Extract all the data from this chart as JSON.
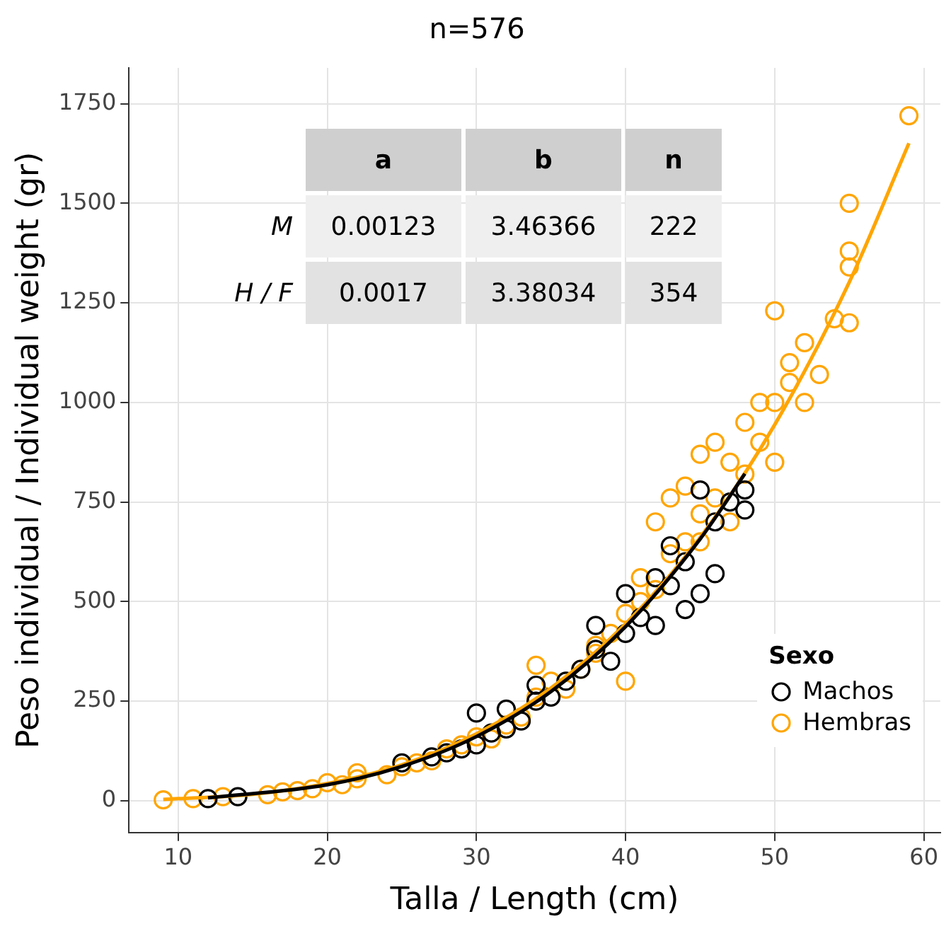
{
  "chart_data": {
    "type": "scatter",
    "title": "n=576",
    "xlabel": "Talla / Length (cm)",
    "ylabel": "Peso individual / Individual weight (gr)",
    "legend_title": "Sexo",
    "xlim": [
      6.7,
      61.1
    ],
    "xticks": [
      10,
      20,
      30,
      40,
      50,
      60
    ],
    "ylim": [
      -80,
      1840
    ],
    "yticks": [
      0,
      250,
      500,
      750,
      1000,
      1250,
      1500,
      1750
    ],
    "grid": true,
    "legend": "bottom right",
    "marker": "circle",
    "annotations": [
      "a",
      "b",
      "n",
      "M",
      "0.00123",
      "3.46366",
      "222",
      "H / F",
      "0.0017",
      "3.38034",
      "354"
    ],
    "series": [
      {
        "name": "Machos",
        "type": "scatter",
        "color": "#000000",
        "x": [
          12,
          14,
          25,
          27,
          28,
          29,
          30,
          30,
          31,
          32,
          32,
          33,
          34,
          34,
          35,
          36,
          37,
          38,
          38,
          39,
          40,
          40,
          41,
          42,
          42,
          43,
          43,
          44,
          44,
          45,
          45,
          46,
          46,
          47,
          48,
          48
        ],
        "values": [
          5,
          10,
          95,
          110,
          120,
          130,
          140,
          220,
          170,
          180,
          230,
          200,
          250,
          290,
          260,
          300,
          330,
          380,
          440,
          350,
          420,
          520,
          460,
          440,
          560,
          540,
          640,
          480,
          600,
          520,
          780,
          570,
          700,
          750,
          780,
          730
        ]
      },
      {
        "name": "Hembras",
        "type": "scatter",
        "color": "#ffa500",
        "x": [
          9,
          11,
          13,
          16,
          17,
          18,
          19,
          20,
          21,
          22,
          22,
          24,
          25,
          26,
          27,
          28,
          29,
          30,
          31,
          32,
          33,
          34,
          34,
          35,
          36,
          37,
          38,
          38,
          39,
          40,
          40,
          41,
          41,
          42,
          42,
          43,
          43,
          44,
          44,
          45,
          45,
          46,
          46,
          47,
          48,
          48,
          49,
          49,
          50,
          50,
          50,
          51,
          51,
          52,
          52,
          53,
          54,
          55,
          55,
          55,
          55,
          59,
          47,
          45
        ],
        "values": [
          2,
          5,
          10,
          15,
          22,
          25,
          30,
          45,
          40,
          70,
          55,
          65,
          85,
          95,
          100,
          130,
          140,
          160,
          155,
          190,
          210,
          260,
          340,
          300,
          280,
          330,
          390,
          370,
          420,
          300,
          470,
          500,
          560,
          530,
          700,
          620,
          760,
          650,
          790,
          720,
          870,
          760,
          900,
          850,
          820,
          950,
          900,
          1000,
          850,
          1000,
          1230,
          1100,
          1050,
          1150,
          1000,
          1070,
          1210,
          1200,
          1380,
          1340,
          1500,
          1720,
          700,
          650
        ]
      },
      {
        "type": "line",
        "marker": "none",
        "color": "#000000",
        "x": [
          12,
          20,
          25,
          30,
          35,
          40,
          45,
          48
        ],
        "values": [
          7,
          40,
          86,
          161,
          274,
          437,
          657,
          821
        ]
      },
      {
        "type": "line",
        "marker": "none",
        "color": "#ffa500",
        "x": [
          9,
          15,
          20,
          25,
          30,
          35,
          40,
          45,
          50,
          55,
          59
        ],
        "values": [
          3,
          16,
          43,
          90,
          168,
          283,
          444,
          661,
          944,
          1302,
          1651
        ]
      }
    ]
  }
}
